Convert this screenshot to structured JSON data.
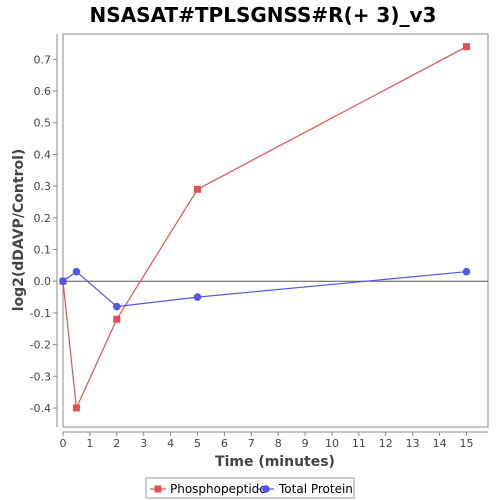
{
  "chart_data": {
    "type": "line",
    "title": "NSASAT#TPLSGNSS#R(+ 3)_v3",
    "xlabel": "Time (minutes)",
    "ylabel": "log2(dDAVP/Control)",
    "xlim": [
      0,
      15.8
    ],
    "ylim": [
      -0.46,
      0.78
    ],
    "xticks": [
      0,
      1,
      2,
      3,
      4,
      5,
      6,
      7,
      8,
      9,
      10,
      11,
      12,
      13,
      14,
      15
    ],
    "yticks": [
      -0.4,
      -0.3,
      -0.2,
      -0.1,
      0.0,
      0.1,
      0.2,
      0.3,
      0.4,
      0.5,
      0.6,
      0.7
    ],
    "ytick_labels": [
      "-0.4",
      "-0.3",
      "-0.2",
      "-0.1",
      "0.0",
      "0.1",
      "0.2",
      "0.3",
      "0.4",
      "0.5",
      "0.6",
      "0.7"
    ],
    "zero_line": true,
    "grid": false,
    "legend_position": "bottom",
    "series": [
      {
        "name": "Phosphopeptide",
        "color": "#e05252",
        "marker": "square",
        "x": [
          0,
          0.5,
          2,
          5,
          15
        ],
        "y": [
          0.0,
          -0.4,
          -0.12,
          0.29,
          0.74
        ]
      },
      {
        "name": "Total Protein",
        "color": "#5555e6",
        "marker": "circle",
        "x": [
          0,
          0.5,
          2,
          5,
          15
        ],
        "y": [
          0.0,
          0.03,
          -0.08,
          -0.05,
          0.03
        ]
      }
    ]
  }
}
